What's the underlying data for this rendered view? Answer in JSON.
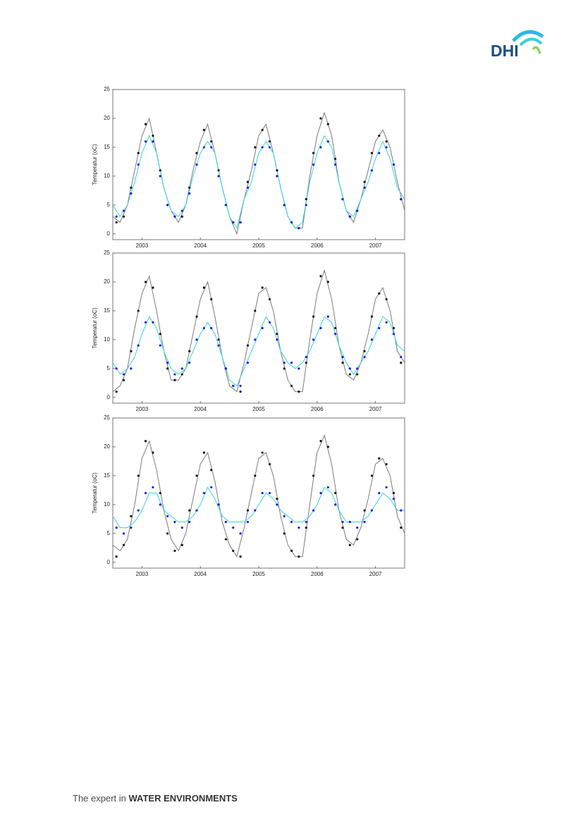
{
  "header": {
    "logo": "DHI"
  },
  "chart_data": [
    {
      "type": "line",
      "ylabel": "Temperatur (oC)",
      "xlim": [
        2003,
        2008
      ],
      "ylim": [
        -1,
        25
      ],
      "yticks": [
        0,
        5,
        10,
        15,
        20,
        25
      ],
      "xticks": [
        {
          "value": 2003.5,
          "label": "2003"
        },
        {
          "value": 2004.5,
          "label": "2004"
        },
        {
          "value": 2005.5,
          "label": "2005"
        },
        {
          "value": 2006.5,
          "label": "2006"
        },
        {
          "value": 2007.5,
          "label": "2007"
        }
      ],
      "x": [
        2003,
        2003.125,
        2003.25,
        2003.375,
        2003.5,
        2003.625,
        2003.75,
        2003.875,
        2004,
        2004.125,
        2004.25,
        2004.375,
        2004.5,
        2004.625,
        2004.75,
        2004.875,
        2005,
        2005.125,
        2005.25,
        2005.375,
        2005.5,
        2005.625,
        2005.75,
        2005.875,
        2006,
        2006.125,
        2006.25,
        2006.375,
        2006.5,
        2006.625,
        2006.75,
        2006.875,
        2007,
        2007.125,
        2007.25,
        2007.375,
        2007.5,
        2007.625,
        2007.75,
        2007.875,
        2008
      ],
      "series": [
        {
          "style": "line",
          "color": "#7a7a7a",
          "values": [
            3,
            2,
            5,
            11,
            17,
            20,
            14,
            8,
            4,
            2,
            5,
            11,
            16,
            19,
            14,
            8,
            3,
            0,
            6,
            11,
            17,
            19,
            14,
            8,
            3,
            1,
            1,
            10,
            17,
            21,
            17,
            9,
            4,
            2,
            6,
            11,
            16,
            18,
            15,
            9,
            4
          ]
        },
        {
          "style": "line",
          "color": "#33d4e0",
          "values": [
            5,
            3,
            5,
            9,
            14,
            17,
            14,
            8,
            4,
            3,
            5,
            10,
            14,
            16,
            14,
            8,
            3,
            1,
            6,
            9,
            14,
            16,
            14,
            8,
            3,
            1,
            2,
            9,
            14,
            17,
            15,
            9,
            4,
            3,
            6,
            9,
            13,
            16,
            13,
            8,
            6
          ]
        },
        {
          "style": "markers",
          "color": "#111111",
          "x": [
            2003.0625,
            2003.1875,
            2003.3125,
            2003.4375,
            2003.5625,
            2003.6875,
            2003.8125,
            2003.9375,
            2004.0625,
            2004.1875,
            2004.3125,
            2004.4375,
            2004.5625,
            2004.6875,
            2004.8125,
            2004.9375,
            2005.0625,
            2005.1875,
            2005.3125,
            2005.4375,
            2005.5625,
            2005.6875,
            2005.8125,
            2005.9375,
            2006.0625,
            2006.1875,
            2006.3125,
            2006.4375,
            2006.5625,
            2006.6875,
            2006.8125,
            2006.9375,
            2007.0625,
            2007.1875,
            2007.3125,
            2007.4375,
            2007.5625,
            2007.6875,
            2007.8125,
            2007.9375
          ],
          "values": [
            2,
            3,
            8,
            14,
            19,
            17,
            11,
            5,
            3,
            3,
            8,
            14,
            18,
            16,
            11,
            5,
            2,
            2,
            9,
            15,
            18,
            16,
            11,
            5,
            2,
            1,
            6,
            14,
            20,
            19,
            13,
            6,
            3,
            4,
            9,
            14,
            17,
            16,
            12,
            6
          ]
        },
        {
          "style": "markers",
          "color": "#1a1aee",
          "x": [
            2003.0625,
            2003.1875,
            2003.3125,
            2003.4375,
            2003.5625,
            2003.6875,
            2003.8125,
            2003.9375,
            2004.0625,
            2004.1875,
            2004.3125,
            2004.4375,
            2004.5625,
            2004.6875,
            2004.8125,
            2004.9375,
            2005.0625,
            2005.1875,
            2005.3125,
            2005.4375,
            2005.5625,
            2005.6875,
            2005.8125,
            2005.9375,
            2006.0625,
            2006.1875,
            2006.3125,
            2006.4375,
            2006.5625,
            2006.6875,
            2006.8125,
            2006.9375,
            2007.0625,
            2007.1875,
            2007.3125,
            2007.4375,
            2007.5625,
            2007.6875,
            2007.8125,
            2007.9375
          ],
          "values": [
            3,
            4,
            7,
            12,
            16,
            16,
            10,
            5,
            3,
            4,
            7,
            12,
            15,
            15,
            10,
            5,
            2,
            2,
            8,
            12,
            15,
            15,
            10,
            5,
            2,
            1,
            5,
            12,
            15,
            16,
            12,
            6,
            3,
            4,
            8,
            11,
            14,
            15,
            12,
            6
          ]
        }
      ]
    },
    {
      "type": "line",
      "ylabel": "Temperatur (oC)",
      "xlim": [
        2003,
        2008
      ],
      "ylim": [
        -1,
        25
      ],
      "yticks": [
        0,
        5,
        10,
        15,
        20,
        25
      ],
      "xticks": [
        {
          "value": 2003.5,
          "label": "2003"
        },
        {
          "value": 2004.5,
          "label": "2004"
        },
        {
          "value": 2005.5,
          "label": "2005"
        },
        {
          "value": 2006.5,
          "label": "2006"
        },
        {
          "value": 2007.5,
          "label": "2007"
        }
      ],
      "x": [
        2003,
        2003.125,
        2003.25,
        2003.375,
        2003.5,
        2003.625,
        2003.75,
        2003.875,
        2004,
        2004.125,
        2004.25,
        2004.375,
        2004.5,
        2004.625,
        2004.75,
        2004.875,
        2005,
        2005.125,
        2005.25,
        2005.375,
        2005.5,
        2005.625,
        2005.75,
        2005.875,
        2006,
        2006.125,
        2006.25,
        2006.375,
        2006.5,
        2006.625,
        2006.75,
        2006.875,
        2007,
        2007.125,
        2007.25,
        2007.375,
        2007.5,
        2007.625,
        2007.75,
        2007.875,
        2008
      ],
      "series": [
        {
          "style": "line",
          "color": "#7a7a7a",
          "values": [
            1,
            2,
            5,
            12,
            18,
            21,
            15,
            8,
            3,
            3,
            5,
            11,
            17,
            20,
            14,
            7,
            2,
            1,
            6,
            12,
            18,
            19,
            15,
            8,
            3,
            1,
            1,
            10,
            18,
            22,
            17,
            9,
            4,
            3,
            6,
            11,
            17,
            19,
            15,
            8,
            6
          ]
        },
        {
          "style": "line",
          "color": "#33d4e0",
          "values": [
            6,
            4,
            5,
            7,
            11,
            14,
            12,
            8,
            5,
            4,
            5,
            8,
            11,
            13,
            11,
            7,
            3,
            2,
            5,
            8,
            11,
            14,
            12,
            8,
            6,
            5,
            6,
            8,
            11,
            14,
            13,
            9,
            6,
            4,
            6,
            8,
            11,
            14,
            13,
            9,
            8
          ]
        },
        {
          "style": "markers",
          "color": "#111111",
          "x": [
            2003.0625,
            2003.1875,
            2003.3125,
            2003.4375,
            2003.5625,
            2003.6875,
            2003.8125,
            2003.9375,
            2004.0625,
            2004.1875,
            2004.3125,
            2004.4375,
            2004.5625,
            2004.6875,
            2004.8125,
            2004.9375,
            2005.0625,
            2005.1875,
            2005.3125,
            2005.4375,
            2005.5625,
            2005.6875,
            2005.8125,
            2005.9375,
            2006.0625,
            2006.1875,
            2006.3125,
            2006.4375,
            2006.5625,
            2006.6875,
            2006.8125,
            2006.9375,
            2007.0625,
            2007.1875,
            2007.3125,
            2007.4375,
            2007.5625,
            2007.6875,
            2007.8125,
            2007.9375
          ],
          "values": [
            1,
            3,
            8,
            15,
            20,
            19,
            11,
            5,
            3,
            4,
            8,
            14,
            19,
            17,
            10,
            5,
            2,
            1,
            9,
            15,
            19,
            17,
            11,
            5,
            2,
            1,
            6,
            14,
            21,
            20,
            12,
            6,
            4,
            4,
            8,
            14,
            18,
            17,
            12,
            6
          ]
        },
        {
          "style": "markers",
          "color": "#1a1aee",
          "x": [
            2003.0625,
            2003.1875,
            2003.3125,
            2003.4375,
            2003.5625,
            2003.6875,
            2003.8125,
            2003.9375,
            2004.0625,
            2004.1875,
            2004.3125,
            2004.4375,
            2004.5625,
            2004.6875,
            2004.8125,
            2004.9375,
            2005.0625,
            2005.1875,
            2005.3125,
            2005.4375,
            2005.5625,
            2005.6875,
            2005.8125,
            2005.9375,
            2006.0625,
            2006.1875,
            2006.3125,
            2006.4375,
            2006.5625,
            2006.6875,
            2006.8125,
            2006.9375,
            2007.0625,
            2007.1875,
            2007.3125,
            2007.4375,
            2007.5625,
            2007.6875,
            2007.8125,
            2007.9375
          ],
          "values": [
            5,
            4,
            5,
            9,
            13,
            13,
            9,
            6,
            4,
            5,
            6,
            10,
            12,
            12,
            9,
            5,
            2,
            2,
            6,
            10,
            12,
            13,
            10,
            6,
            6,
            5,
            7,
            10,
            12,
            14,
            11,
            7,
            5,
            5,
            7,
            10,
            12,
            13,
            11,
            7
          ]
        }
      ]
    },
    {
      "type": "line",
      "ylabel": "Temperatur (oC)",
      "xlim": [
        2003,
        2008
      ],
      "ylim": [
        -1,
        25
      ],
      "yticks": [
        0,
        5,
        10,
        15,
        20,
        25
      ],
      "xticks": [
        {
          "value": 2003.5,
          "label": "2003"
        },
        {
          "value": 2004.5,
          "label": "2004"
        },
        {
          "value": 2005.5,
          "label": "2005"
        },
        {
          "value": 2006.5,
          "label": "2006"
        },
        {
          "value": 2007.5,
          "label": "2007"
        }
      ],
      "x": [
        2003,
        2003.125,
        2003.25,
        2003.375,
        2003.5,
        2003.625,
        2003.75,
        2003.875,
        2004,
        2004.125,
        2004.25,
        2004.375,
        2004.5,
        2004.625,
        2004.75,
        2004.875,
        2005,
        2005.125,
        2005.25,
        2005.375,
        2005.5,
        2005.625,
        2005.75,
        2005.875,
        2006,
        2006.125,
        2006.25,
        2006.375,
        2006.5,
        2006.625,
        2006.75,
        2006.875,
        2007,
        2007.125,
        2007.25,
        2007.375,
        2007.5,
        2007.625,
        2007.75,
        2007.875,
        2008
      ],
      "series": [
        {
          "style": "line",
          "color": "#7a7a7a",
          "values": [
            3,
            2,
            4,
            10,
            18,
            21,
            16,
            9,
            4,
            2,
            5,
            11,
            17,
            19,
            14,
            7,
            3,
            1,
            6,
            12,
            18,
            19,
            15,
            8,
            3,
            1,
            1,
            10,
            19,
            22,
            17,
            9,
            4,
            3,
            6,
            11,
            17,
            18,
            15,
            8,
            5
          ]
        },
        {
          "style": "line",
          "color": "#33d4e0",
          "values": [
            8,
            6,
            6,
            7,
            9,
            12,
            12,
            9,
            8,
            7,
            7,
            8,
            10,
            13,
            11,
            8,
            7,
            7,
            7,
            8,
            10,
            12,
            11,
            9,
            8,
            7,
            7,
            8,
            10,
            13,
            12,
            9,
            7,
            7,
            7,
            8,
            10,
            12,
            11,
            9,
            9
          ]
        },
        {
          "style": "markers",
          "color": "#111111",
          "x": [
            2003.0625,
            2003.1875,
            2003.3125,
            2003.4375,
            2003.5625,
            2003.6875,
            2003.8125,
            2003.9375,
            2004.0625,
            2004.1875,
            2004.3125,
            2004.4375,
            2004.5625,
            2004.6875,
            2004.8125,
            2004.9375,
            2005.0625,
            2005.1875,
            2005.3125,
            2005.4375,
            2005.5625,
            2005.6875,
            2005.8125,
            2005.9375,
            2006.0625,
            2006.1875,
            2006.3125,
            2006.4375,
            2006.5625,
            2006.6875,
            2006.8125,
            2006.9375,
            2007.0625,
            2007.1875,
            2007.3125,
            2007.4375,
            2007.5625,
            2007.6875,
            2007.8125,
            2007.9375
          ],
          "values": [
            1,
            3,
            8,
            15,
            21,
            19,
            12,
            5,
            2,
            3,
            9,
            15,
            19,
            16,
            10,
            4,
            2,
            1,
            9,
            15,
            19,
            17,
            11,
            5,
            2,
            1,
            6,
            15,
            21,
            20,
            12,
            6,
            3,
            4,
            9,
            15,
            18,
            17,
            12,
            6
          ]
        },
        {
          "style": "markers",
          "color": "#1a1aee",
          "x": [
            2003.0625,
            2003.1875,
            2003.3125,
            2003.4375,
            2003.5625,
            2003.6875,
            2003.8125,
            2003.9375,
            2004.0625,
            2004.1875,
            2004.3125,
            2004.4375,
            2004.5625,
            2004.6875,
            2004.8125,
            2004.9375,
            2005.0625,
            2005.1875,
            2005.3125,
            2005.4375,
            2005.5625,
            2005.6875,
            2005.8125,
            2005.9375,
            2006.0625,
            2006.1875,
            2006.3125,
            2006.4375,
            2006.5625,
            2006.6875,
            2006.8125,
            2006.9375,
            2007.0625,
            2007.1875,
            2007.3125,
            2007.4375,
            2007.5625,
            2007.6875,
            2007.8125,
            2007.9375
          ],
          "values": [
            6,
            5,
            6,
            9,
            12,
            13,
            10,
            8,
            7,
            6,
            7,
            9,
            12,
            13,
            10,
            7,
            6,
            5,
            7,
            9,
            12,
            12,
            10,
            8,
            7,
            6,
            7,
            9,
            12,
            13,
            10,
            7,
            7,
            6,
            7,
            9,
            12,
            13,
            11,
            9
          ]
        }
      ]
    }
  ],
  "footer": {
    "prefix": "The expert in",
    "emphasis": "WATER ENVIRONMENTS"
  }
}
